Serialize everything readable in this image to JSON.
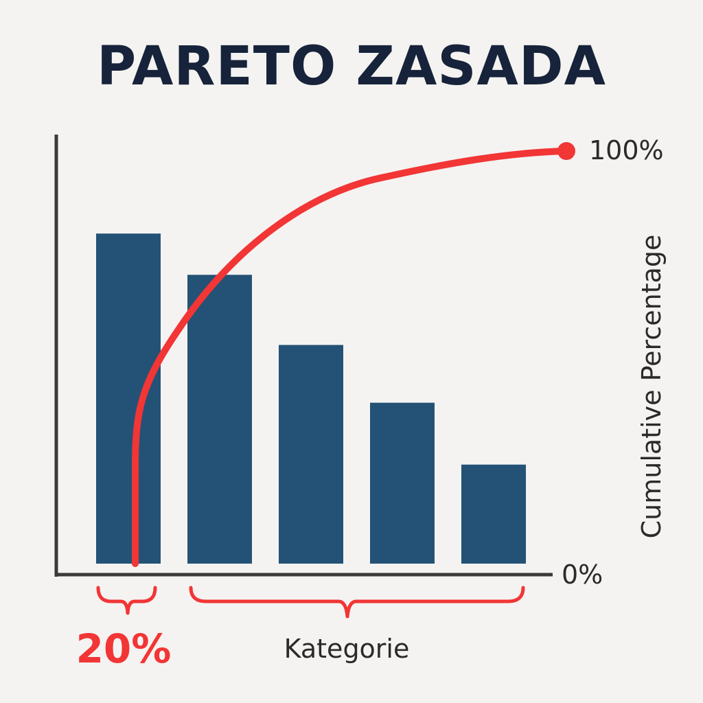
{
  "title": "PARETO ZASADA",
  "colors": {
    "background": "#f4f3f1",
    "bar": "#235276",
    "curve": "#f23535",
    "axis": "#3a3a3a",
    "title": "#16233a"
  },
  "chart_data": {
    "type": "bar",
    "title": "PARETO ZASADA",
    "xlabel": "Kategorie",
    "ylabel": "Cumulative Percentage",
    "categories": [
      "",
      "",
      "",
      "",
      ""
    ],
    "values": [
      80,
      70,
      53,
      39,
      24
    ],
    "ylim": [
      0,
      100
    ],
    "y_ticks": [
      "0%",
      "100%"
    ],
    "cumulative_curve": {
      "start": 0,
      "end": 100,
      "end_label": "100%"
    },
    "brace_label": "20%",
    "legend": "none",
    "grid": false
  }
}
